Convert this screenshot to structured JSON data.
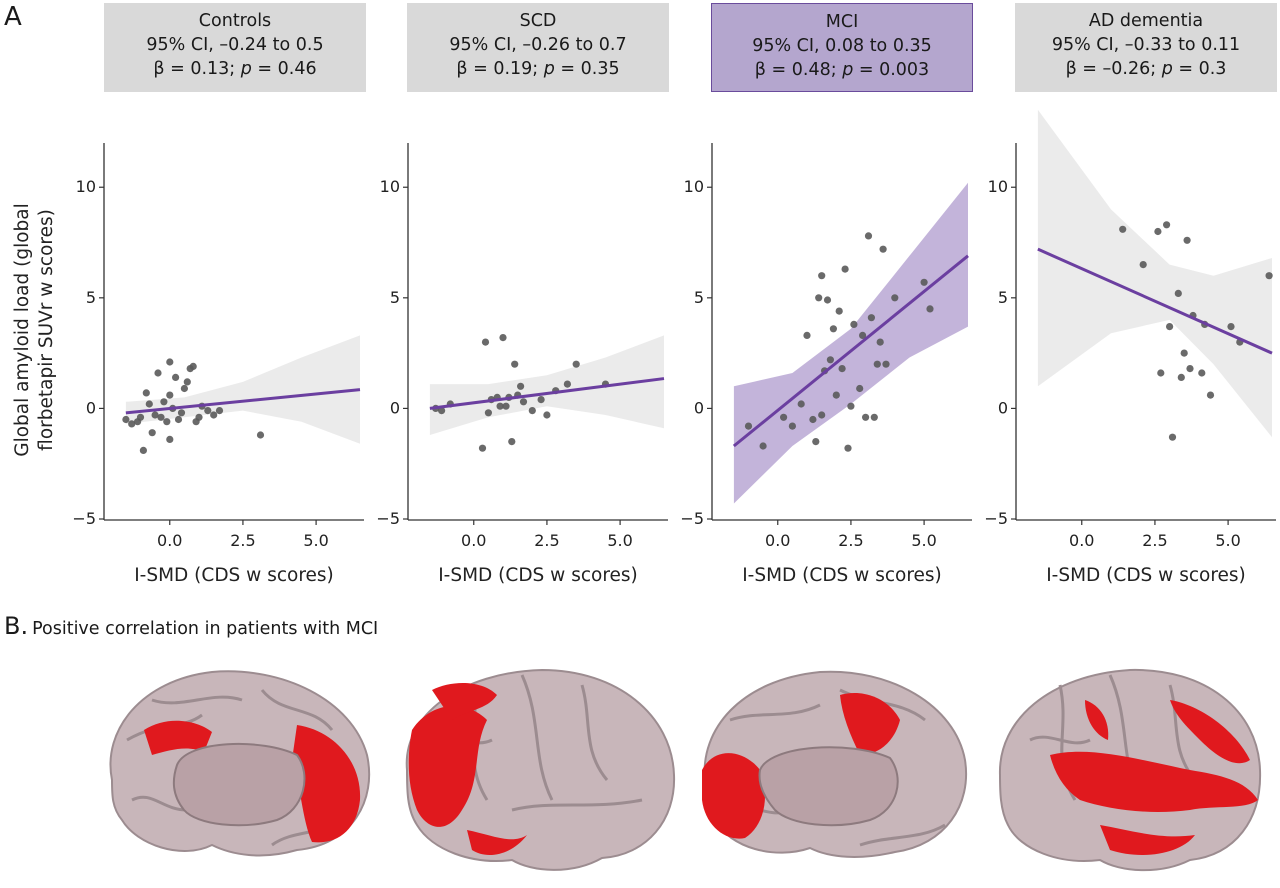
{
  "panel_a_label": "A",
  "panel_b_label": "B.",
  "panel_b_title": "Positive correlation in patients with MCI",
  "colors": {
    "line": "#6b3fa0",
    "ribbon_gray": "#ebebeb",
    "ribbon_purple": "#b9a7d3",
    "point": "#5a5a5a",
    "strip": "#d9d9d9",
    "strip_highlight": "#b4a6ce",
    "brain": "#c6b3b8",
    "brain_red": "#e0191e"
  },
  "chart_data": [
    {
      "type": "scatter",
      "facet": "Controls",
      "strip": {
        "title": "Controls",
        "ci": "95% CI, –0.24 to 0.5",
        "stat_prefix": "β = 0.13; ",
        "p_label": "p",
        "stat_suffix": " = 0.46"
      },
      "xlabel": "I-SMD (CDS w scores)",
      "ylabel": "Global amyloid load (global florbetapir SUVr w scores)",
      "xlim": [
        -1.7,
        6.5
      ],
      "ylim": [
        -5,
        12
      ],
      "xticks": [
        "0.0",
        "2.5",
        "5.0"
      ],
      "yticks": [
        "10",
        "5",
        "0",
        "−5"
      ],
      "fit": {
        "x": [
          -1.5,
          6.5
        ],
        "y": [
          -0.2,
          0.85
        ]
      },
      "ribbon": {
        "x": [
          -1.5,
          0.5,
          2.5,
          4.5,
          6.5
        ],
        "upper": [
          0.3,
          0.5,
          1.2,
          2.3,
          3.3
        ],
        "lower": [
          -0.7,
          -0.4,
          -0.1,
          -0.6,
          -1.6
        ]
      },
      "points": [
        [
          -1.5,
          -0.5
        ],
        [
          -1.3,
          -0.7
        ],
        [
          -1.1,
          -0.6
        ],
        [
          -1.0,
          -0.4
        ],
        [
          -0.9,
          -1.9
        ],
        [
          -0.8,
          0.7
        ],
        [
          -0.7,
          0.2
        ],
        [
          -0.6,
          -1.1
        ],
        [
          -0.5,
          -0.3
        ],
        [
          -0.4,
          1.6
        ],
        [
          -0.3,
          -0.4
        ],
        [
          -0.2,
          0.3
        ],
        [
          -0.1,
          -0.6
        ],
        [
          0.0,
          0.6
        ],
        [
          0.0,
          -1.4
        ],
        [
          0.0,
          2.1
        ],
        [
          0.1,
          0.0
        ],
        [
          0.2,
          1.4
        ],
        [
          0.3,
          -0.5
        ],
        [
          0.4,
          -0.2
        ],
        [
          0.5,
          0.9
        ],
        [
          0.6,
          1.2
        ],
        [
          0.7,
          1.8
        ],
        [
          0.8,
          1.9
        ],
        [
          0.9,
          -0.6
        ],
        [
          1.0,
          -0.4
        ],
        [
          1.1,
          0.1
        ],
        [
          1.3,
          -0.1
        ],
        [
          1.5,
          -0.3
        ],
        [
          1.7,
          -0.1
        ],
        [
          3.1,
          -1.2
        ]
      ]
    },
    {
      "type": "scatter",
      "facet": "SCD",
      "strip": {
        "title": "SCD",
        "ci": "95% CI, –0.26 to 0.7",
        "stat_prefix": "β = 0.19; ",
        "p_label": "p",
        "stat_suffix": " = 0.35"
      },
      "xlabel": "I-SMD (CDS w scores)",
      "xlim": [
        -1.7,
        6.5
      ],
      "ylim": [
        -5,
        12
      ],
      "xticks": [
        "0.0",
        "2.5",
        "5.0"
      ],
      "yticks": [
        "10",
        "5",
        "0",
        "−5"
      ],
      "fit": {
        "x": [
          -1.5,
          6.5
        ],
        "y": [
          0.0,
          1.35
        ]
      },
      "ribbon": {
        "x": [
          -1.5,
          0.5,
          2.5,
          4.5,
          6.5
        ],
        "upper": [
          1.1,
          1.1,
          1.5,
          2.3,
          3.3
        ],
        "lower": [
          -1.2,
          -0.4,
          0.1,
          -0.3,
          -0.9
        ]
      },
      "points": [
        [
          -1.3,
          0.0
        ],
        [
          -1.1,
          -0.1
        ],
        [
          -0.8,
          0.2
        ],
        [
          0.3,
          -1.8
        ],
        [
          0.4,
          3.0
        ],
        [
          0.5,
          -0.2
        ],
        [
          0.6,
          0.4
        ],
        [
          0.8,
          0.5
        ],
        [
          0.9,
          0.1
        ],
        [
          1.0,
          3.2
        ],
        [
          1.1,
          0.1
        ],
        [
          1.2,
          0.5
        ],
        [
          1.3,
          -1.5
        ],
        [
          1.4,
          2.0
        ],
        [
          1.5,
          0.6
        ],
        [
          1.6,
          1.0
        ],
        [
          1.7,
          0.3
        ],
        [
          2.0,
          -0.1
        ],
        [
          2.3,
          0.4
        ],
        [
          2.5,
          -0.3
        ],
        [
          2.8,
          0.8
        ],
        [
          3.2,
          1.1
        ],
        [
          3.5,
          2.0
        ],
        [
          4.5,
          1.1
        ]
      ]
    },
    {
      "type": "scatter",
      "facet": "MCI",
      "highlight": true,
      "strip": {
        "title": "MCI",
        "ci": "95% CI, 0.08 to 0.35",
        "stat_prefix": "β = 0.48; ",
        "p_label": "p",
        "stat_suffix": " = 0.003"
      },
      "xlabel": "I-SMD (CDS w scores)",
      "xlim": [
        -1.7,
        6.5
      ],
      "ylim": [
        -5,
        12
      ],
      "xticks": [
        "0.0",
        "2.5",
        "5.0"
      ],
      "yticks": [
        "10",
        "5",
        "0",
        "−5"
      ],
      "fit": {
        "x": [
          -1.5,
          6.5
        ],
        "y": [
          -1.7,
          6.9
        ]
      },
      "ribbon": {
        "x": [
          -1.5,
          0.5,
          2.5,
          4.5,
          6.5
        ],
        "upper": [
          1.0,
          1.6,
          3.6,
          6.9,
          10.2
        ],
        "lower": [
          -4.3,
          -1.7,
          0.2,
          2.3,
          3.7
        ]
      },
      "points": [
        [
          -1.0,
          -0.8
        ],
        [
          -0.5,
          -1.7
        ],
        [
          0.2,
          -0.4
        ],
        [
          0.5,
          -0.8
        ],
        [
          0.8,
          0.2
        ],
        [
          1.0,
          3.3
        ],
        [
          1.2,
          -0.5
        ],
        [
          1.3,
          -1.5
        ],
        [
          1.4,
          5.0
        ],
        [
          1.5,
          6.0
        ],
        [
          1.5,
          -0.3
        ],
        [
          1.6,
          1.7
        ],
        [
          1.7,
          4.9
        ],
        [
          1.8,
          2.2
        ],
        [
          1.9,
          3.6
        ],
        [
          2.0,
          0.6
        ],
        [
          2.1,
          4.4
        ],
        [
          2.2,
          1.8
        ],
        [
          2.3,
          6.3
        ],
        [
          2.4,
          -1.8
        ],
        [
          2.5,
          0.1
        ],
        [
          2.6,
          3.8
        ],
        [
          2.8,
          0.9
        ],
        [
          2.9,
          3.3
        ],
        [
          3.0,
          -0.4
        ],
        [
          3.1,
          7.8
        ],
        [
          3.2,
          4.1
        ],
        [
          3.3,
          -0.4
        ],
        [
          3.4,
          2.0
        ],
        [
          3.5,
          3.0
        ],
        [
          3.6,
          7.2
        ],
        [
          3.7,
          2.0
        ],
        [
          4.0,
          5.0
        ],
        [
          5.0,
          5.7
        ],
        [
          5.2,
          4.5
        ]
      ]
    },
    {
      "type": "scatter",
      "facet": "AD dementia",
      "strip": {
        "title": "AD dementia",
        "ci": "95% CI, –0.33 to 0.11",
        "stat_prefix": "β = –0.26; ",
        "p_label": "p",
        "stat_suffix": " = 0.3"
      },
      "xlabel": "I-SMD (CDS w scores)",
      "xlim": [
        -1.7,
        6.5
      ],
      "ylim": [
        -5,
        12
      ],
      "xticks": [
        "0.0",
        "2.5",
        "5.0"
      ],
      "yticks": [
        "10",
        "5",
        "0",
        "−5"
      ],
      "fit": {
        "x": [
          -1.5,
          6.5
        ],
        "y": [
          7.2,
          2.5
        ]
      },
      "ribbon": {
        "x": [
          -1.5,
          1.0,
          3.0,
          4.5,
          6.5
        ],
        "upper": [
          13.5,
          9.0,
          6.5,
          6.0,
          6.8
        ],
        "lower": [
          1.0,
          3.4,
          4.0,
          2.0,
          -1.3
        ]
      },
      "points": [
        [
          1.4,
          8.1
        ],
        [
          2.1,
          6.5
        ],
        [
          2.6,
          8.0
        ],
        [
          2.7,
          1.6
        ],
        [
          2.9,
          8.3
        ],
        [
          3.0,
          3.7
        ],
        [
          3.1,
          -1.3
        ],
        [
          3.3,
          5.2
        ],
        [
          3.4,
          1.4
        ],
        [
          3.5,
          2.5
        ],
        [
          3.6,
          7.6
        ],
        [
          3.7,
          1.8
        ],
        [
          3.8,
          4.2
        ],
        [
          4.1,
          1.6
        ],
        [
          4.2,
          3.8
        ],
        [
          4.4,
          0.6
        ],
        [
          5.1,
          3.7
        ],
        [
          5.4,
          3.0
        ],
        [
          6.4,
          6.0
        ]
      ]
    }
  ]
}
